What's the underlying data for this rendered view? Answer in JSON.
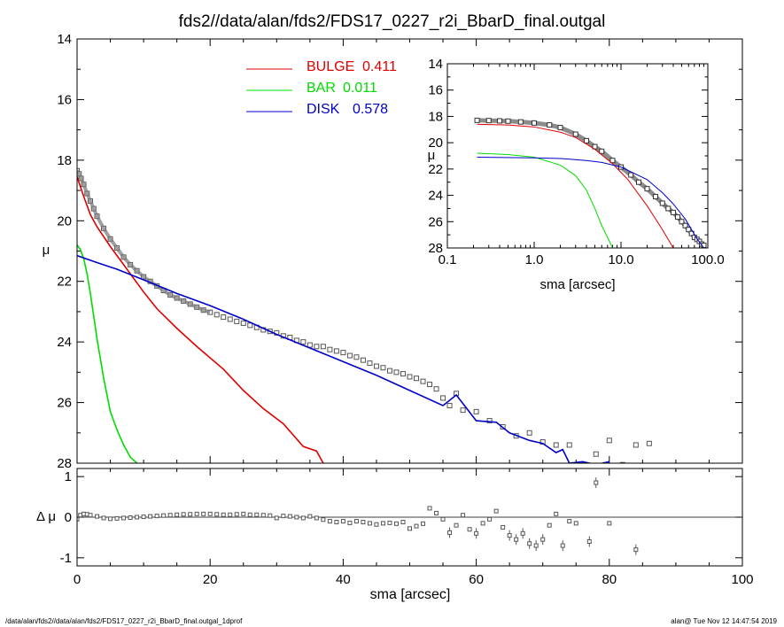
{
  "title": "fds2//data/alan/fds2/FDS17_0227_r2i_BbarD_final.outgal",
  "footer_left": "/data/alan/fds2//data/alan/fds2/FDS17_0227_r2i_BbarD_final.outgal_1dprof",
  "footer_right": "alan@  Tue Nov 12 14:47:54 2019",
  "colors": {
    "bulge": "#e00000",
    "bar": "#00dd00",
    "disk": "#0000c8",
    "data": "#555555"
  },
  "chart_data": [
    {
      "id": "main",
      "type": "line",
      "xlabel": "",
      "ylabel": "μ",
      "xlim": [
        0,
        100
      ],
      "ylim": [
        28,
        14
      ],
      "yticks": [
        14,
        16,
        18,
        20,
        22,
        24,
        26,
        28
      ],
      "xticks": [
        0,
        20,
        40,
        60,
        80,
        100
      ],
      "legend": [
        {
          "label": "BULGE",
          "value": "0.411",
          "color": "#e00000"
        },
        {
          "label": "BAR",
          "value": "0.011",
          "color": "#00dd00"
        },
        {
          "label": "DISK",
          "value": "0.578",
          "color": "#0000c8"
        }
      ],
      "series": [
        {
          "name": "BULGE",
          "color": "#e00000",
          "x": [
            0,
            1,
            2,
            3,
            5,
            7,
            10,
            12,
            15,
            18,
            22,
            25,
            28,
            31,
            34,
            36,
            37
          ],
          "y": [
            18.55,
            19.2,
            19.8,
            20.2,
            20.85,
            21.45,
            22.35,
            22.9,
            23.55,
            24.15,
            24.9,
            25.6,
            26.2,
            26.7,
            27.45,
            27.6,
            28.0
          ]
        },
        {
          "name": "BAR",
          "color": "#00dd00",
          "x": [
            0,
            0.5,
            1,
            1.5,
            2,
            3,
            4,
            5,
            6,
            7,
            8,
            9
          ],
          "y": [
            20.8,
            20.95,
            21.25,
            21.75,
            22.4,
            23.9,
            25.2,
            26.3,
            26.9,
            27.4,
            27.8,
            28.0
          ]
        },
        {
          "name": "DISK",
          "color": "#0000c8",
          "x": [
            0,
            3,
            6,
            10,
            15,
            20,
            25,
            30,
            35,
            40,
            45,
            50,
            55,
            57,
            60,
            63,
            65,
            68,
            70,
            72,
            73,
            74,
            76,
            78,
            80
          ],
          "y": [
            21.15,
            21.38,
            21.6,
            21.95,
            22.4,
            22.8,
            23.25,
            23.75,
            24.2,
            24.65,
            25.1,
            25.6,
            26.1,
            25.75,
            26.6,
            26.65,
            27.0,
            27.25,
            27.35,
            27.65,
            27.55,
            28.0,
            27.95,
            28.05,
            27.95
          ]
        }
      ],
      "data_points": {
        "x": [
          0,
          0.3,
          0.6,
          1,
          1.5,
          2,
          2.5,
          3,
          4,
          5,
          6,
          7,
          8,
          9,
          10,
          11,
          12,
          13,
          14,
          15,
          16,
          17,
          18,
          19,
          20,
          21,
          22,
          23,
          24,
          25,
          26,
          27,
          28,
          29,
          30,
          31,
          32,
          33,
          34,
          35,
          36,
          37,
          38,
          39,
          40,
          41,
          42,
          43,
          44,
          45,
          46,
          47,
          48,
          49,
          50,
          51,
          52,
          53,
          54,
          55,
          56,
          57,
          58,
          60,
          62,
          64,
          66,
          68,
          70,
          72,
          74,
          76,
          78,
          80,
          82,
          84,
          86
        ],
        "y": [
          18.35,
          18.45,
          18.6,
          18.8,
          19.1,
          19.35,
          19.6,
          19.85,
          20.25,
          20.6,
          20.9,
          21.2,
          21.45,
          21.65,
          21.85,
          22.0,
          22.15,
          22.3,
          22.45,
          22.55,
          22.65,
          22.75,
          22.85,
          22.95,
          23.02,
          23.1,
          23.18,
          23.25,
          23.32,
          23.38,
          23.45,
          23.52,
          23.6,
          23.65,
          23.7,
          23.8,
          23.85,
          23.95,
          24.0,
          24.1,
          24.15,
          24.15,
          24.25,
          24.3,
          24.35,
          24.45,
          24.5,
          24.6,
          24.7,
          24.8,
          24.85,
          24.95,
          25.0,
          25.05,
          25.15,
          25.2,
          25.3,
          25.4,
          25.55,
          25.85,
          26.1,
          25.7,
          26.25,
          26.3,
          26.6,
          26.8,
          27.1,
          27.0,
          27.3,
          27.4,
          27.4,
          28.05,
          27.7,
          27.25,
          28.05,
          27.4,
          27.35
        ]
      }
    },
    {
      "id": "residual",
      "type": "scatter",
      "xlabel": "sma [arcsec]",
      "ylabel": "Δ μ",
      "xlim": [
        0,
        100
      ],
      "ylim": [
        -1.2,
        1.2
      ],
      "yticks": [
        -1,
        0,
        1
      ],
      "xticks": [
        0,
        20,
        40,
        60,
        80,
        100
      ],
      "xticklabels": [
        "0",
        "20",
        "40",
        "60",
        "80",
        "100"
      ],
      "yticklabels": [
        "-1",
        "0",
        "1"
      ],
      "x": [
        0,
        0.5,
        1,
        1.5,
        2,
        3,
        4,
        5,
        6,
        7,
        8,
        9,
        10,
        11,
        12,
        13,
        14,
        15,
        16,
        17,
        18,
        19,
        20,
        21,
        22,
        23,
        24,
        25,
        26,
        27,
        28,
        29,
        30,
        31,
        32,
        33,
        34,
        35,
        36,
        37,
        38,
        39,
        40,
        41,
        42,
        43,
        44,
        45,
        46,
        47,
        48,
        49,
        50,
        51,
        52,
        53,
        54,
        55,
        56,
        57,
        58,
        59,
        60,
        61,
        62,
        63,
        64,
        65,
        66,
        67,
        68,
        69,
        70,
        71,
        72,
        73,
        74,
        75,
        77,
        78,
        80,
        84
      ],
      "y": [
        -0.05,
        0.05,
        0.08,
        0.07,
        0.05,
        0.02,
        -0.02,
        -0.04,
        -0.03,
        -0.02,
        -0.01,
        0.0,
        0.01,
        0.02,
        0.03,
        0.04,
        0.05,
        0.06,
        0.07,
        0.07,
        0.08,
        0.08,
        0.08,
        0.07,
        0.06,
        0.06,
        0.07,
        0.08,
        0.06,
        0.06,
        0.05,
        0.04,
        -0.02,
        0.03,
        0.02,
        0.0,
        -0.02,
        0.02,
        -0.02,
        -0.06,
        -0.1,
        -0.12,
        -0.1,
        -0.14,
        -0.1,
        -0.12,
        -0.15,
        -0.18,
        -0.15,
        -0.14,
        -0.16,
        -0.12,
        -0.28,
        -0.22,
        -0.16,
        0.22,
        0.1,
        -0.05,
        -0.38,
        -0.2,
        0.05,
        -0.3,
        -0.4,
        -0.15,
        -0.05,
        0.15,
        -0.25,
        -0.45,
        -0.55,
        -0.4,
        -0.65,
        -0.7,
        -0.55,
        -0.2,
        0.08,
        -0.7,
        -0.1,
        -0.15,
        -0.6,
        0.85,
        -0.15,
        -0.8
      ]
    },
    {
      "id": "inset",
      "type": "line",
      "xlabel": "sma [arcsec]",
      "ylabel": "μ",
      "xscale": "log",
      "xlim": [
        0.1,
        100
      ],
      "ylim": [
        28,
        14
      ],
      "yticks": [
        14,
        16,
        18,
        20,
        22,
        24,
        26,
        28
      ],
      "xticks": [
        0.1,
        1,
        10,
        100
      ],
      "xticklabels": [
        "0.1",
        "1.0",
        "10.0",
        "100.0"
      ],
      "series": [
        {
          "name": "BULGE",
          "color": "#e00000",
          "x": [
            0.22,
            0.5,
            1,
            2,
            3,
            5,
            8,
            12,
            20,
            30,
            40
          ],
          "y": [
            18.6,
            18.65,
            18.8,
            19.2,
            19.6,
            20.5,
            21.6,
            22.8,
            24.8,
            26.6,
            28.0
          ]
        },
        {
          "name": "BAR",
          "color": "#00dd00",
          "x": [
            0.22,
            0.5,
            1,
            2,
            3,
            4,
            5,
            6,
            7,
            8
          ],
          "y": [
            20.8,
            20.9,
            21.1,
            21.7,
            22.5,
            23.6,
            25.0,
            26.3,
            27.2,
            28.0
          ]
        },
        {
          "name": "DISK",
          "color": "#0000c8",
          "x": [
            0.22,
            1,
            2,
            4,
            6,
            10,
            20,
            30,
            40,
            55,
            75,
            90
          ],
          "y": [
            21.1,
            21.15,
            21.2,
            21.35,
            21.5,
            21.85,
            22.8,
            23.8,
            24.65,
            25.8,
            27.3,
            28.0
          ]
        }
      ],
      "data_points": {
        "x": [
          0.22,
          0.3,
          0.4,
          0.5,
          0.7,
          1.0,
          1.5,
          2.0,
          3.0,
          4.0,
          5.0,
          6.0,
          8.0,
          10,
          13,
          16,
          20,
          25,
          30,
          35,
          40,
          45,
          50,
          55,
          60,
          65,
          70,
          75,
          80,
          85,
          90
        ],
        "y": [
          18.3,
          18.32,
          18.34,
          18.36,
          18.42,
          18.5,
          18.65,
          18.85,
          19.35,
          19.85,
          20.3,
          20.65,
          21.35,
          21.85,
          22.45,
          23.0,
          23.5,
          24.1,
          24.6,
          25.0,
          25.3,
          25.65,
          26.0,
          26.3,
          26.6,
          26.9,
          27.2,
          27.35,
          27.5,
          27.7,
          27.8
        ]
      }
    }
  ]
}
